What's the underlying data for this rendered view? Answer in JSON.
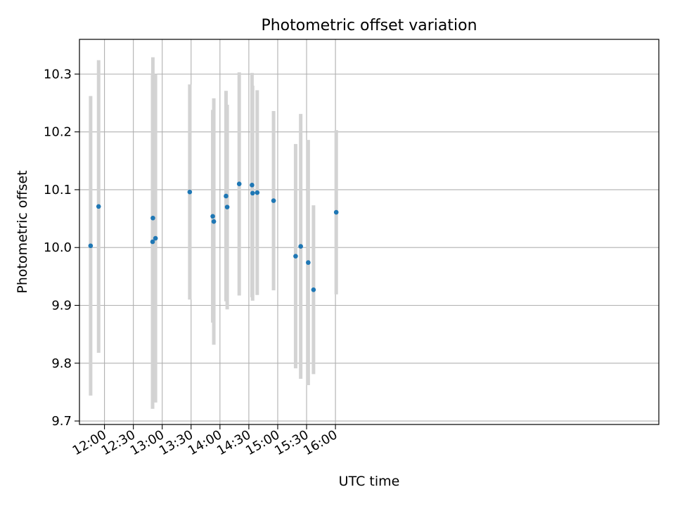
{
  "chart_data": {
    "type": "scatter",
    "title": "Photometric offset variation",
    "xlabel": "UTC time",
    "ylabel": "Photometric offset",
    "x_unit": "minutes since 00:00 UTC",
    "xlim": [
      694,
      1296
    ],
    "ylim": [
      9.694,
      10.36
    ],
    "grid": true,
    "x_ticks": [
      {
        "value": 720,
        "label": "12:00"
      },
      {
        "value": 750,
        "label": "12:30"
      },
      {
        "value": 780,
        "label": "13:00"
      },
      {
        "value": 810,
        "label": "13:30"
      },
      {
        "value": 840,
        "label": "14:00"
      },
      {
        "value": 870,
        "label": "14:30"
      },
      {
        "value": 900,
        "label": "15:00"
      },
      {
        "value": 930,
        "label": "15:30"
      },
      {
        "value": 960,
        "label": "16:00"
      }
    ],
    "y_ticks": [
      {
        "value": 9.7,
        "label": "9.7"
      },
      {
        "value": 9.8,
        "label": "9.8"
      },
      {
        "value": 9.9,
        "label": "9.9"
      },
      {
        "value": 10.0,
        "label": "10.0"
      },
      {
        "value": 10.1,
        "label": "10.1"
      },
      {
        "value": 10.2,
        "label": "10.2"
      },
      {
        "value": 10.3,
        "label": "10.3"
      }
    ],
    "series": [
      {
        "name": "offset",
        "marker_color": "#1f77b4",
        "errorbar_color": "#d3d3d3",
        "points": [
          {
            "x": 705.6,
            "y": 10.003,
            "yerr": 0.259
          },
          {
            "x": 713.9,
            "y": 10.071,
            "yerr": 0.253
          },
          {
            "x": 770.0,
            "y": 10.01,
            "yerr": 0.289
          },
          {
            "x": 770.3,
            "y": 10.051,
            "yerr": 0.278
          },
          {
            "x": 773.0,
            "y": 10.016,
            "yerr": 0.284
          },
          {
            "x": 808.6,
            "y": 10.096,
            "yerr": 0.186
          },
          {
            "x": 832.5,
            "y": 10.054,
            "yerr": 0.184
          },
          {
            "x": 833.6,
            "y": 10.045,
            "yerr": 0.213
          },
          {
            "x": 846.3,
            "y": 10.089,
            "yerr": 0.182
          },
          {
            "x": 847.5,
            "y": 10.07,
            "yerr": 0.177
          },
          {
            "x": 860.0,
            "y": 10.11,
            "yerr": 0.193
          },
          {
            "x": 873.3,
            "y": 10.108,
            "yerr": 0.194
          },
          {
            "x": 873.9,
            "y": 10.094,
            "yerr": 0.186
          },
          {
            "x": 878.7,
            "y": 10.095,
            "yerr": 0.177
          },
          {
            "x": 895.7,
            "y": 10.081,
            "yerr": 0.155
          },
          {
            "x": 918.6,
            "y": 9.985,
            "yerr": 0.194
          },
          {
            "x": 923.9,
            "y": 10.002,
            "yerr": 0.229
          },
          {
            "x": 931.7,
            "y": 9.974,
            "yerr": 0.212
          },
          {
            "x": 937.2,
            "y": 9.927,
            "yerr": 0.146
          },
          {
            "x": 960.8,
            "y": 10.061,
            "yerr": 0.142
          }
        ]
      }
    ]
  }
}
